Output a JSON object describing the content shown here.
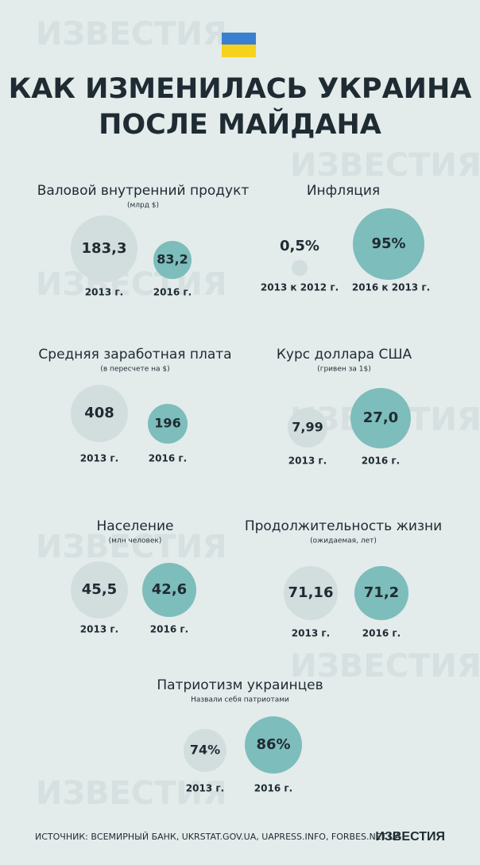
{
  "header": {
    "title": [
      "КАК ИЗМЕНИЛАСЬ УКРАИНА",
      "ПОСЛЕ МАЙДАНА"
    ]
  },
  "watermark": "ИЗВЕСТИЯ",
  "panels": [
    {
      "title": "Валовой внутренний продукт",
      "subtitle": "(млрд $)",
      "items": [
        {
          "value": "183,3",
          "label": "2013 г."
        },
        {
          "value": "83,2",
          "label": "2016 г."
        }
      ]
    },
    {
      "title": "Инфляция",
      "items": [
        {
          "value": "0,5%",
          "label": "2013 к 2012  г."
        },
        {
          "value": "95%",
          "label": "2016 к 2013 г."
        }
      ]
    },
    {
      "title": "Средняя заработная плата",
      "subtitle": "(в пересчете на $)",
      "items": [
        {
          "value": "408",
          "label": "2013 г."
        },
        {
          "value": "196",
          "label": "2016 г."
        }
      ]
    },
    {
      "title": "Курс доллара США",
      "subtitle": "(гривен за 1$)",
      "items": [
        {
          "value": "7,99",
          "label": "2013 г."
        },
        {
          "value": "27,0",
          "label": "2016 г."
        }
      ]
    },
    {
      "title": "Население",
      "subtitle": "(млн человек)",
      "items": [
        {
          "value": "45,5",
          "label": "2013 г."
        },
        {
          "value": "42,6",
          "label": "2016 г."
        }
      ]
    },
    {
      "title": "Продолжительность жизни",
      "subtitle": "(ожидаемая, лет)",
      "items": [
        {
          "value": "71,16",
          "label": "2013 г."
        },
        {
          "value": "71,2",
          "label": "2016 г."
        }
      ]
    },
    {
      "title": "Патриотизм украинцев",
      "subtitle": "Назвали себя патриотами",
      "items": [
        {
          "value": "74%",
          "label": "2013 г."
        },
        {
          "value": "86%",
          "label": "2016 г."
        }
      ]
    }
  ],
  "footer": {
    "source": "ИСТОЧНИК: ВСЕМИРНЫЙ БАНК, UKRSTAT.GOV.UA, UAPRESS.INFO, FORBES.NET.UA",
    "logo": "ИЗВЕСТИЯ"
  }
}
